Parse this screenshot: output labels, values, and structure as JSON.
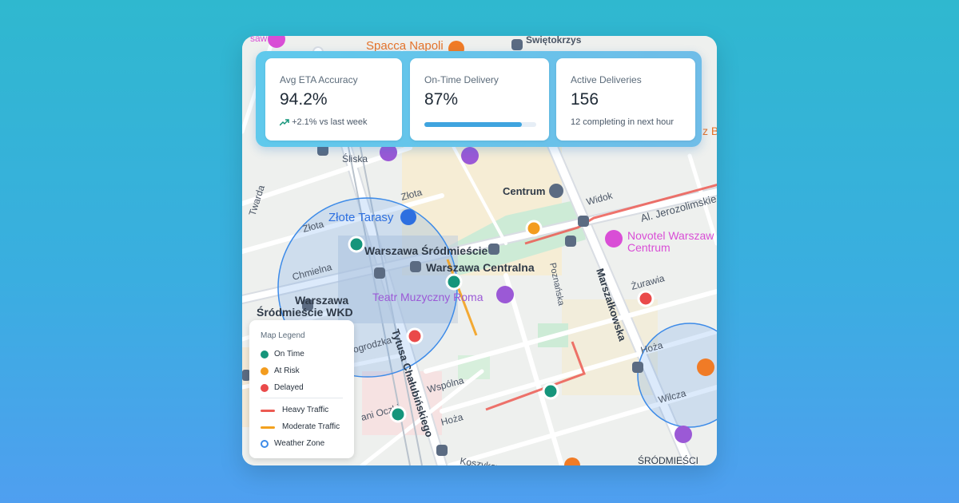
{
  "stats": {
    "eta": {
      "label": "Avg ETA Accuracy",
      "value": "94.2%",
      "trend_text": "+2.1% vs last week",
      "trend_icon": "trending-up-icon"
    },
    "ontime": {
      "label": "On-Time Delivery",
      "value": "87%",
      "progress_fraction": 0.87
    },
    "active": {
      "label": "Active Deliveries",
      "value": "156",
      "sub": "12 completing in next hour"
    }
  },
  "legend": {
    "title": "Map Legend",
    "items": [
      {
        "label": "On Time",
        "kind": "dot",
        "color": "#15957b"
      },
      {
        "label": "At Risk",
        "kind": "dot",
        "color": "#f39c1f"
      },
      {
        "label": "Delayed",
        "kind": "dot",
        "color": "#ea4a4a"
      },
      {
        "label": "Heavy Traffic",
        "kind": "line",
        "color": "#ec5a52"
      },
      {
        "label": "Moderate Traffic",
        "kind": "line",
        "color": "#f3a11e"
      },
      {
        "label": "Weather Zone",
        "kind": "ring",
        "color": "#3d8be8"
      }
    ]
  },
  "map": {
    "pois": {
      "spacca_napoli": "Spacca Napoli",
      "zlote_tarasy": "Złote Tarasy",
      "teatr": "Teatr Muzyczny Roma",
      "novotel_1": "Novotel Warszaw",
      "novotel_2": "Centrum",
      "centrum": "Centrum",
      "warszawa_srodmiescie": "Warszawa Śródmieście",
      "warszawa_centralna": "Warszawa Centralna",
      "wkd_1": "Warszawa",
      "wkd_2": "Śródmieście WKD",
      "swietokrzyska": "Świętokrzys",
      "z_b": "z B"
    },
    "streets": {
      "sliska": "Śliska",
      "zlota_1": "Złota",
      "zlota_2": "Złota",
      "twarda": "Twarda",
      "chmielna": "Chmielna",
      "widok": "Widok",
      "jerozolimskie": "Al. Jerozolimskie",
      "poznanska": "Poznańska",
      "marszalkowska": "Marszałkowska",
      "zurawia": "Żurawia",
      "hoza_1": "Hoża",
      "hoza_2": "Hoża",
      "wilcza": "Wilcza",
      "wspolna": "Wspólna",
      "tytusa": "Tytusa Chałubińskiego",
      "nogrodzka": "ogrodzka",
      "pani_oczki": "ani Oczki",
      "koszykowa": "Koszykowa",
      "srodmiescie": "ŚRÓDMIEŚCI",
      "saw": "saw"
    },
    "markers": [
      {
        "status": "on_time",
        "color": "#15957b"
      },
      {
        "status": "on_time",
        "color": "#15957b"
      },
      {
        "status": "on_time",
        "color": "#15957b"
      },
      {
        "status": "on_time",
        "color": "#15957b"
      },
      {
        "status": "at_risk",
        "color": "#f39c1f"
      },
      {
        "status": "delayed",
        "color": "#ea4a4a"
      },
      {
        "status": "delayed",
        "color": "#ea4a4a"
      }
    ]
  },
  "colors": {
    "accent": "#3fa4df",
    "on_time": "#15957b",
    "at_risk": "#f39c1f",
    "delayed": "#ea4a4a",
    "weather": "#3d8be8"
  }
}
